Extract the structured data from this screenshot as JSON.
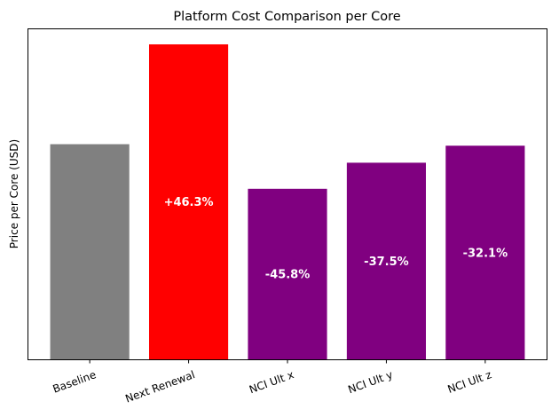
{
  "chart_data": {
    "type": "bar",
    "title": "Platform Cost Comparison per Core",
    "xlabel": "",
    "ylabel": "Price per Core (USD)",
    "categories": [
      "Baseline",
      "Next Renewal",
      "NCI Ult x",
      "NCI Ult y",
      "NCI Ult z"
    ],
    "values": [
      1.0,
      1.463,
      0.793,
      0.914,
      0.993
    ],
    "colors": [
      "#808080",
      "#ff0000",
      "#800080",
      "#800080",
      "#800080"
    ],
    "data_labels": [
      "",
      "+46.3%",
      "-45.8%",
      "-37.5%",
      "-32.1%"
    ],
    "ylim": [
      0,
      1.535
    ],
    "y_ticks_shown": false,
    "grid": false,
    "legend": "none"
  }
}
